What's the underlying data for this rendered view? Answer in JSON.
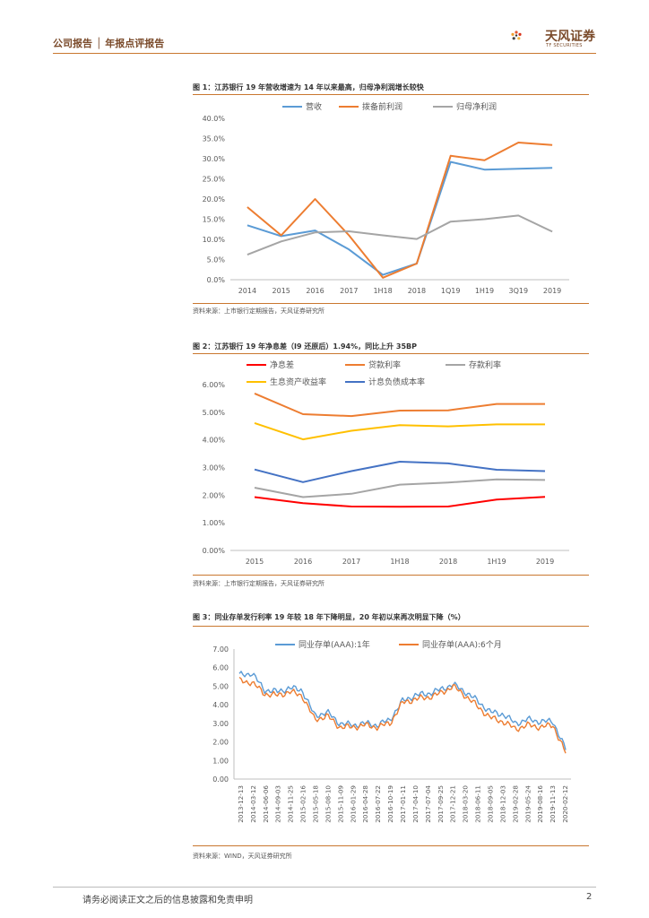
{
  "header": {
    "category": "公司报告 │ 年报点评报告",
    "logo_cn": "天风证券",
    "logo_en": "TF SECURITIES"
  },
  "colors": {
    "accent": "#c9772f",
    "blue": "#5b9bd5",
    "orange": "#ed7d31",
    "gray": "#a5a5a5",
    "red": "#ff0000",
    "yellow": "#ffc000",
    "darkblue": "#4472c4"
  },
  "figures": [
    {
      "title": "图 1：江苏银行 19 年营收增速为 14 年以来最高，归母净利润增长较快",
      "source": "资料来源：上市银行定期报告，天风证券研究所"
    },
    {
      "title": "图 2：江苏银行 19 年净息差（I9 还原后）1.94%，同比上升 35BP",
      "source": "资料来源：上市银行定期报告，天风证券研究所"
    },
    {
      "title": "图 3：同业存单发行利率 19 年较 18 年下降明显，20 年初以来再次明显下降（%）",
      "source": "资料来源：WIND，天风证券研究所"
    }
  ],
  "chart_data": [
    {
      "type": "line",
      "categories": [
        "2014",
        "2015",
        "2016",
        "2017",
        "1H18",
        "2018",
        "1Q19",
        "1H19",
        "3Q19",
        "2019"
      ],
      "series": [
        {
          "name": "营收",
          "color": "#5b9bd5",
          "values": [
            13.5,
            10.8,
            12.2,
            7.5,
            1.2,
            4.0,
            29.2,
            27.3,
            27.5,
            27.7
          ]
        },
        {
          "name": "拨备前利润",
          "color": "#ed7d31",
          "values": [
            18.0,
            11.0,
            20.0,
            11.0,
            0.5,
            4.0,
            30.7,
            29.6,
            34.0,
            33.4
          ]
        },
        {
          "name": "归母净利润",
          "color": "#a5a5a5",
          "values": [
            6.2,
            9.5,
            11.7,
            12.0,
            11.0,
            10.1,
            14.4,
            15.0,
            15.9,
            11.9
          ]
        }
      ],
      "yticks": [
        "0.0%",
        "5.0%",
        "10.0%",
        "15.0%",
        "20.0%",
        "25.0%",
        "30.0%",
        "35.0%",
        "40.0%"
      ],
      "ylim": [
        0,
        40
      ]
    },
    {
      "type": "line",
      "categories": [
        "2015",
        "2016",
        "2017",
        "1H18",
        "2018",
        "1H19",
        "2019"
      ],
      "series": [
        {
          "name": "净息差",
          "color": "#ff0000",
          "values": [
            1.93,
            1.71,
            1.59,
            1.58,
            1.59,
            1.84,
            1.94
          ]
        },
        {
          "name": "贷款利率",
          "color": "#ed7d31",
          "values": [
            5.68,
            4.93,
            4.86,
            5.06,
            5.07,
            5.3,
            5.3
          ]
        },
        {
          "name": "存款利率",
          "color": "#a5a5a5",
          "values": [
            2.27,
            1.93,
            2.05,
            2.38,
            2.46,
            2.57,
            2.55
          ]
        },
        {
          "name": "生息资产收益率",
          "color": "#ffc000",
          "values": [
            4.61,
            4.02,
            4.33,
            4.53,
            4.49,
            4.56,
            4.56
          ]
        },
        {
          "name": "计息负债成本率",
          "color": "#4472c4",
          "values": [
            2.93,
            2.47,
            2.87,
            3.21,
            3.15,
            2.92,
            2.87
          ]
        }
      ],
      "yticks": [
        "0.00%",
        "1.00%",
        "2.00%",
        "3.00%",
        "4.00%",
        "5.00%",
        "6.00%"
      ],
      "ylim": [
        0,
        6
      ]
    },
    {
      "type": "line",
      "categories": [
        "2013-12-13",
        "2014-03-12",
        "2014-06-06",
        "2014-09-03",
        "2014-11-25",
        "2015-02-16",
        "2015-05-18",
        "2015-08-10",
        "2015-11-09",
        "2016-01-29",
        "2016-04-28",
        "2016-07-22",
        "2016-10-19",
        "2017-01-11",
        "2017-04-10",
        "2017-07-04",
        "2017-09-25",
        "2017-12-21",
        "2018-03-20",
        "2018-06-11",
        "2018-09-05",
        "2018-12-03",
        "2019-02-28",
        "2019-05-24",
        "2019-08-16",
        "2019-11-13",
        "2020-02-12"
      ],
      "series": [
        {
          "name": "同业存单(AAA):1年",
          "color": "#5b9bd5",
          "values": [
            5.6,
            5.7,
            4.8,
            4.7,
            4.9,
            4.8,
            3.4,
            3.6,
            3.0,
            2.9,
            3.0,
            2.9,
            3.2,
            4.2,
            4.5,
            4.6,
            4.8,
            5.1,
            4.7,
            4.2,
            3.6,
            3.5,
            3.0,
            3.2,
            3.1,
            3.1,
            1.6
          ]
        },
        {
          "name": "同业存单(AAA):6个月",
          "color": "#ed7d31",
          "values": [
            5.3,
            5.2,
            4.6,
            4.5,
            4.7,
            4.5,
            3.2,
            3.4,
            2.8,
            2.8,
            2.9,
            2.8,
            3.0,
            4.1,
            4.3,
            4.4,
            4.6,
            5.0,
            4.5,
            3.9,
            3.3,
            3.1,
            2.7,
            2.9,
            2.8,
            2.9,
            1.4
          ]
        }
      ],
      "yticks": [
        "0.00",
        "1.00",
        "2.00",
        "3.00",
        "4.00",
        "5.00",
        "6.00",
        "7.00"
      ],
      "ylim": [
        0,
        7
      ]
    }
  ],
  "footer": {
    "disclaimer": "请务必阅读正文之后的信息披露和免责申明",
    "page": "2"
  }
}
